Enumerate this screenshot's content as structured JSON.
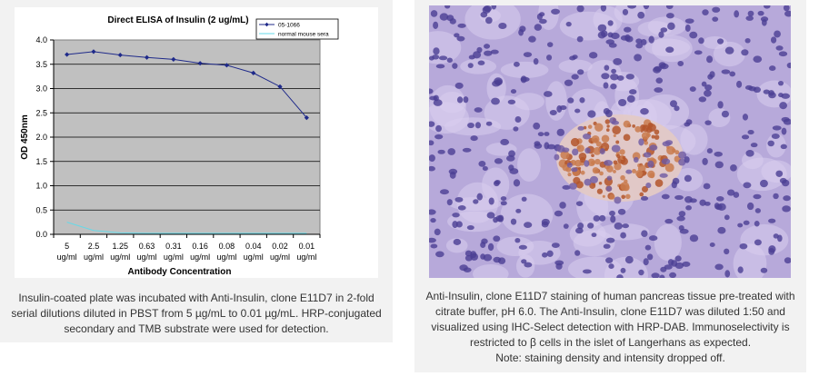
{
  "elisa_panel": {
    "caption": "Insulin-coated plate was incubated with Anti-Insulin, clone E11D7 in 2-fold serial dilutions diluted in PBST from 5 µg/mL to 0.01 µg/mL. HRP-conjugated secondary and TMB substrate were used for detection."
  },
  "ihc_panel": {
    "caption_lines": [
      "Anti-Insulin, clone E11D7 staining of human pancreas tissue pre-treated with",
      "citrate buffer, pH 6.0. The Anti-Insulin, clone E11D7 was diluted 1:50 and",
      "visualized using IHC-Select detection with HRP-DAB. Immunoselectivity is",
      "restricted to β cells in the islet of Langerhans as expected.",
      "Note: staining density and intensity dropped off."
    ],
    "image_icon": "pancreas-ihc-micrograph"
  },
  "chart_data": {
    "type": "line",
    "title": "Direct ELISA of Insulin (2 ug/mL)",
    "xlabel": "Antibody Concentration",
    "ylabel": "OD 450nm",
    "ylim": [
      0,
      4
    ],
    "yticks": [
      "0.0",
      "0.5",
      "1.0",
      "1.5",
      "2.0",
      "2.5",
      "3.0",
      "3.5",
      "4.0"
    ],
    "categories": [
      [
        "5",
        "ug/ml"
      ],
      [
        "2.5",
        "ug/ml"
      ],
      [
        "1.25",
        "ug/ml"
      ],
      [
        "0.63",
        "ug/ml"
      ],
      [
        "0.31",
        "ug/ml"
      ],
      [
        "0.16",
        "ug/ml"
      ],
      [
        "0.08",
        "ug/ml"
      ],
      [
        "0.04",
        "ug/ml"
      ],
      [
        "0.02",
        "ug/ml"
      ],
      [
        "0.01",
        "ug/ml"
      ]
    ],
    "grid": true,
    "legend_position": "top-right",
    "plot_background": "#c0c0c0",
    "series": [
      {
        "name": "05-1066",
        "color": "#1f2a8a",
        "marker": "diamond",
        "values": [
          3.7,
          3.76,
          3.69,
          3.64,
          3.6,
          3.52,
          3.48,
          3.32,
          3.04,
          2.4
        ]
      },
      {
        "name": "normal mouse sera",
        "color": "#66d9e8",
        "marker": "none",
        "values": [
          0.25,
          0.08,
          0.03,
          0.02,
          0.02,
          0.02,
          0.02,
          0.02,
          0.02,
          0.02
        ]
      }
    ]
  }
}
